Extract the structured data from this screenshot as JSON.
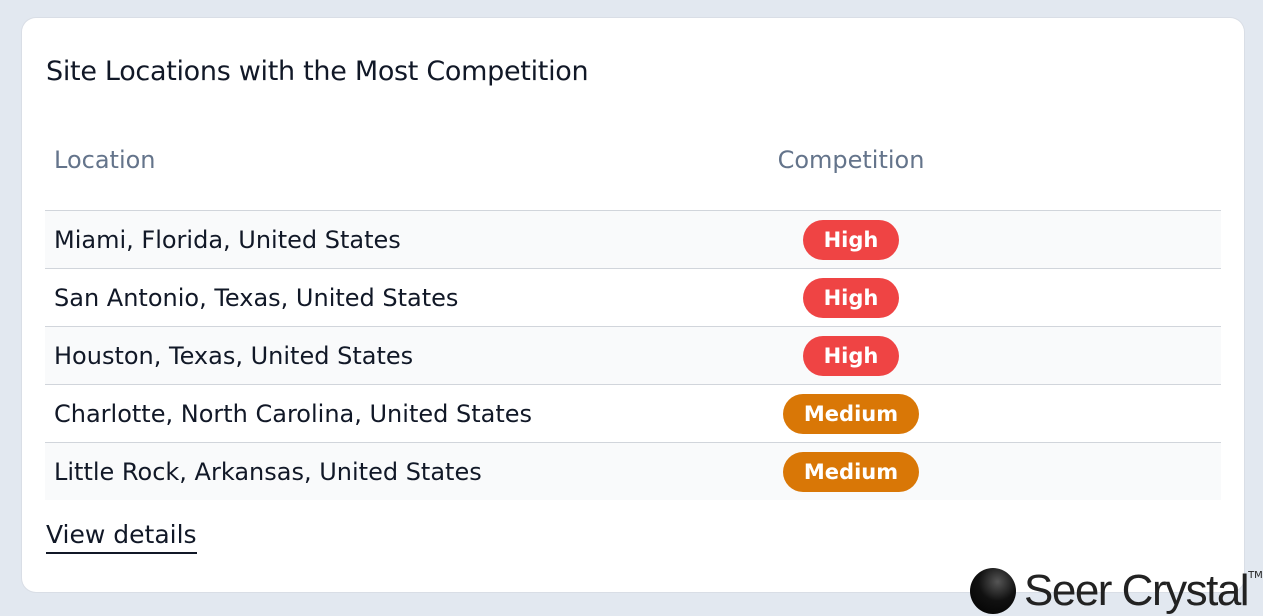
{
  "card": {
    "title": "Site Locations with the Most Competition",
    "columns": [
      "Location",
      "Competition"
    ],
    "rows": [
      {
        "location": "Miami, Florida, United States",
        "competition": "High"
      },
      {
        "location": "San Antonio, Texas, United States",
        "competition": "High"
      },
      {
        "location": "Houston, Texas, United States",
        "competition": "High"
      },
      {
        "location": "Charlotte, North Carolina, United States",
        "competition": "Medium"
      },
      {
        "location": "Little Rock, Arkansas, United States",
        "competition": "Medium"
      }
    ],
    "view_details": "View details"
  },
  "colors": {
    "High": "#ef4444",
    "Medium": "#d97706"
  },
  "logo": {
    "text": "Seer Crystal",
    "tm": "TM"
  }
}
